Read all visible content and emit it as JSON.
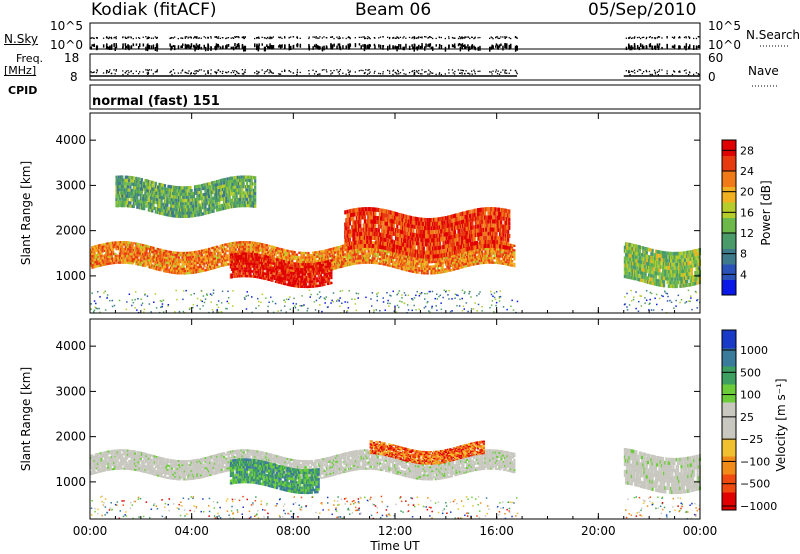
{
  "header": {
    "station": "Kodiak (fitACF)",
    "beam": "Beam 06",
    "date": "05/Sep/2010"
  },
  "noise_panel": {
    "left_label": "N.Sky",
    "right_label": "N.Search",
    "left_ticks": [
      "10^5",
      "10^0"
    ],
    "right_ticks": [
      "10^5",
      "10^0"
    ]
  },
  "freq_panel": {
    "left_label_1": "Freq.",
    "left_label_2": "[MHz]",
    "right_label": "Nave",
    "left_ticks": [
      "18",
      "8"
    ],
    "right_ticks": [
      "60",
      "0"
    ]
  },
  "cpid": {
    "label": "CPID",
    "value": "normal (fast) 151"
  },
  "colors": {
    "power_scale": [
      "#0a18e8",
      "#2a52b8",
      "#3f7a8a",
      "#4b9a6a",
      "#6db84a",
      "#b6cc2a",
      "#f0b020",
      "#f07a18",
      "#e83a10",
      "#e00000"
    ],
    "velocity_scale": [
      "#e00000",
      "#f04a10",
      "#f08a18",
      "#f0c030",
      "#c8c8c0",
      "#c8c8c0",
      "#6ccc3a",
      "#3ea060",
      "#3a7a9a",
      "#1a3ac8"
    ]
  },
  "chart_data": [
    {
      "type": "heatmap",
      "title": "",
      "xlabel": "",
      "ylabel": "Slant Range [km]",
      "x_ticks": [
        "00:00",
        "04:00",
        "08:00",
        "12:00",
        "16:00",
        "20:00",
        "00:00"
      ],
      "y_ticks": [
        "1000",
        "2000",
        "3000",
        "4000"
      ],
      "xlim": [
        0,
        24
      ],
      "ylim": [
        180,
        4600
      ],
      "colorbar": {
        "label": "Power [dB]",
        "ticks": [
          "4",
          "8",
          "12",
          "16",
          "20",
          "24",
          "28"
        ],
        "range": [
          0,
          30
        ]
      },
      "features": [
        {
          "name": "main band",
          "t_start": 0.0,
          "t_end": 16.7,
          "range_km": [
            1150,
            1650
          ],
          "power_db": 22
        },
        {
          "name": "strong echo",
          "t_start": 5.5,
          "t_end": 9.5,
          "range_km": [
            850,
            1400
          ],
          "power_db": 28
        },
        {
          "name": "upper band",
          "t_start": 10.0,
          "t_end": 16.5,
          "range_km": [
            1500,
            2400
          ],
          "power_db": 26
        },
        {
          "name": "high scatter",
          "t_start": 1.0,
          "t_end": 6.5,
          "range_km": [
            2400,
            3100
          ],
          "power_db": 12
        },
        {
          "name": "late band",
          "t_start": 21.0,
          "t_end": 24.0,
          "range_km": [
            850,
            1650
          ],
          "power_db": 14
        }
      ],
      "data_gap": [
        16.8,
        21.0
      ]
    },
    {
      "type": "heatmap",
      "title": "",
      "xlabel": "Time UT",
      "ylabel": "Slant Range [km]",
      "x_ticks": [
        "00:00",
        "04:00",
        "08:00",
        "12:00",
        "16:00",
        "20:00",
        "00:00"
      ],
      "y_ticks": [
        "1000",
        "2000",
        "3000",
        "4000"
      ],
      "xlim": [
        0,
        24
      ],
      "ylim": [
        180,
        4600
      ],
      "colorbar": {
        "label": "Velocity [m s⁻¹]",
        "ticks": [
          "1000",
          "500",
          "100",
          "25",
          "−25",
          "−100",
          "−500",
          "−1000"
        ]
      },
      "features": [
        {
          "name": "ground scatter band",
          "t_start": 0.0,
          "t_end": 16.7,
          "range_km": [
            1150,
            1600
          ],
          "velocity": 0
        },
        {
          "name": "positive velocity",
          "t_start": 5.5,
          "t_end": 9.0,
          "range_km": [
            850,
            1400
          ],
          "velocity": 100
        },
        {
          "name": "negative velocity",
          "t_start": 11.0,
          "t_end": 15.5,
          "range_km": [
            1500,
            1800
          ],
          "velocity": -200
        },
        {
          "name": "late ground scatter",
          "t_start": 21.0,
          "t_end": 24.0,
          "range_km": [
            850,
            1650
          ],
          "velocity": 0
        }
      ],
      "data_gap": [
        16.8,
        21.0
      ]
    }
  ]
}
